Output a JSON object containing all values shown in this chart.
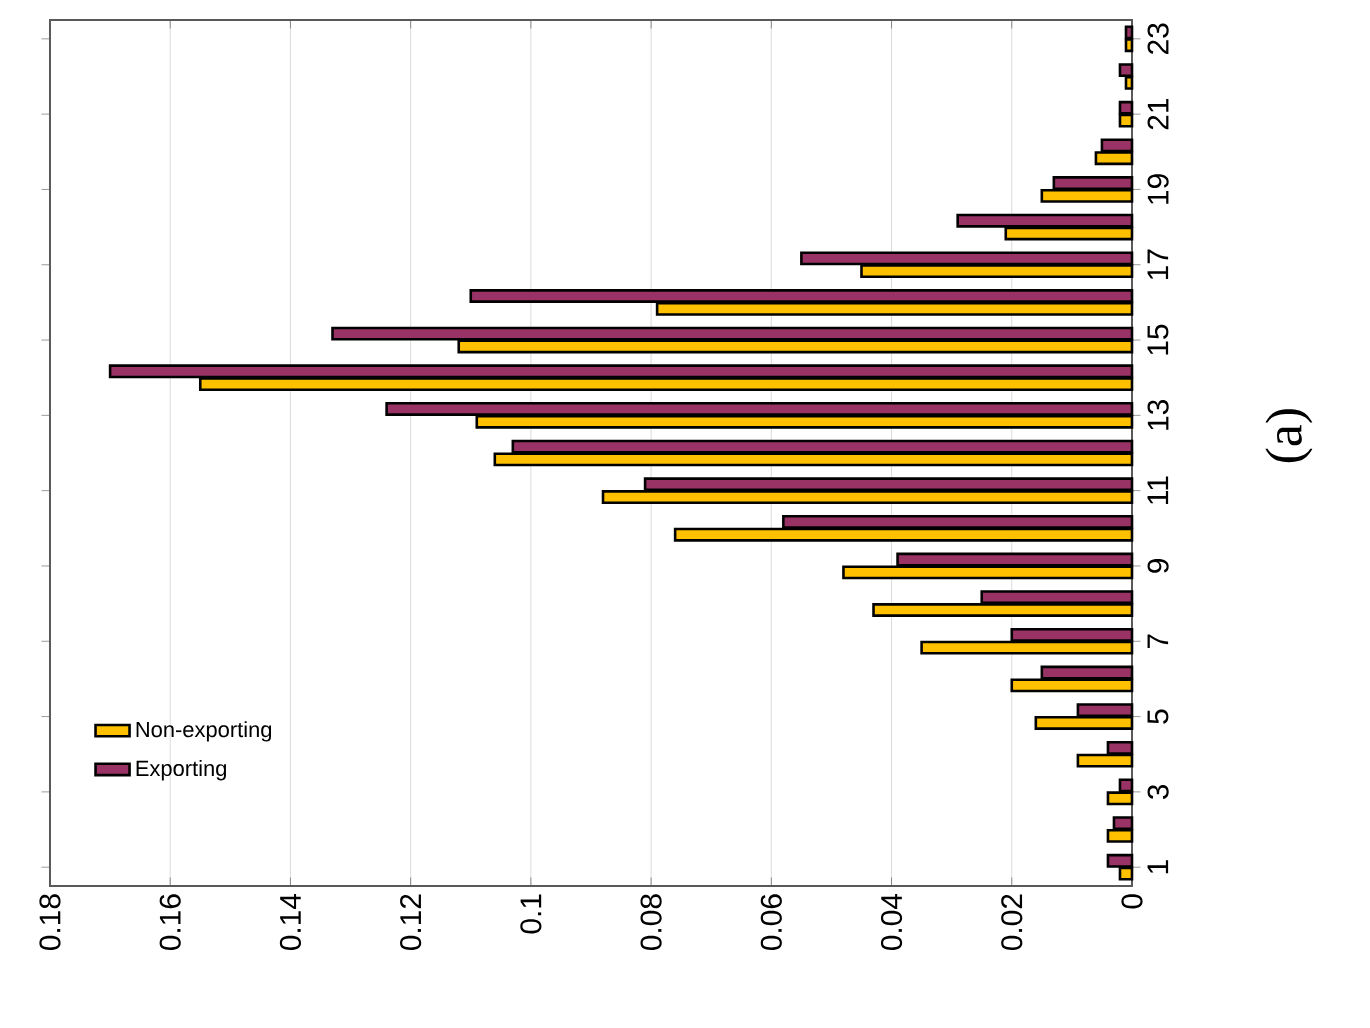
{
  "chart_data": {
    "type": "bar",
    "orientation": "horizontal",
    "categories": [
      "23",
      null,
      "21",
      null,
      "19",
      null,
      "17",
      null,
      "15",
      null,
      "13",
      null,
      "11",
      null,
      "9",
      null,
      "7",
      null,
      "5",
      null,
      "3",
      null,
      "1"
    ],
    "series": [
      {
        "name": "Non-exporting",
        "color": "#ffc000",
        "values": [
          0.001,
          0.001,
          0.002,
          0.006,
          0.015,
          0.021,
          0.045,
          0.079,
          0.112,
          0.155,
          0.109,
          0.106,
          0.088,
          0.076,
          0.048,
          0.043,
          0.035,
          0.02,
          0.016,
          0.009,
          0.004,
          0.004,
          0.002
        ]
      },
      {
        "name": "Exporting",
        "color": "#993366",
        "values": [
          0.001,
          0.002,
          0.002,
          0.005,
          0.013,
          0.029,
          0.055,
          0.11,
          0.133,
          0.17,
          0.124,
          0.103,
          0.081,
          0.058,
          0.039,
          0.025,
          0.02,
          0.015,
          0.009,
          0.004,
          0.002,
          0.003,
          0.004
        ]
      }
    ],
    "xlim": [
      0.18,
      0
    ],
    "xticks": [
      0,
      0.02,
      0.04,
      0.06,
      0.08,
      0.1,
      0.12,
      0.14,
      0.16,
      0.18
    ],
    "grid": "x",
    "legend": "bottom left",
    "annotations": [
      "(a)"
    ]
  }
}
